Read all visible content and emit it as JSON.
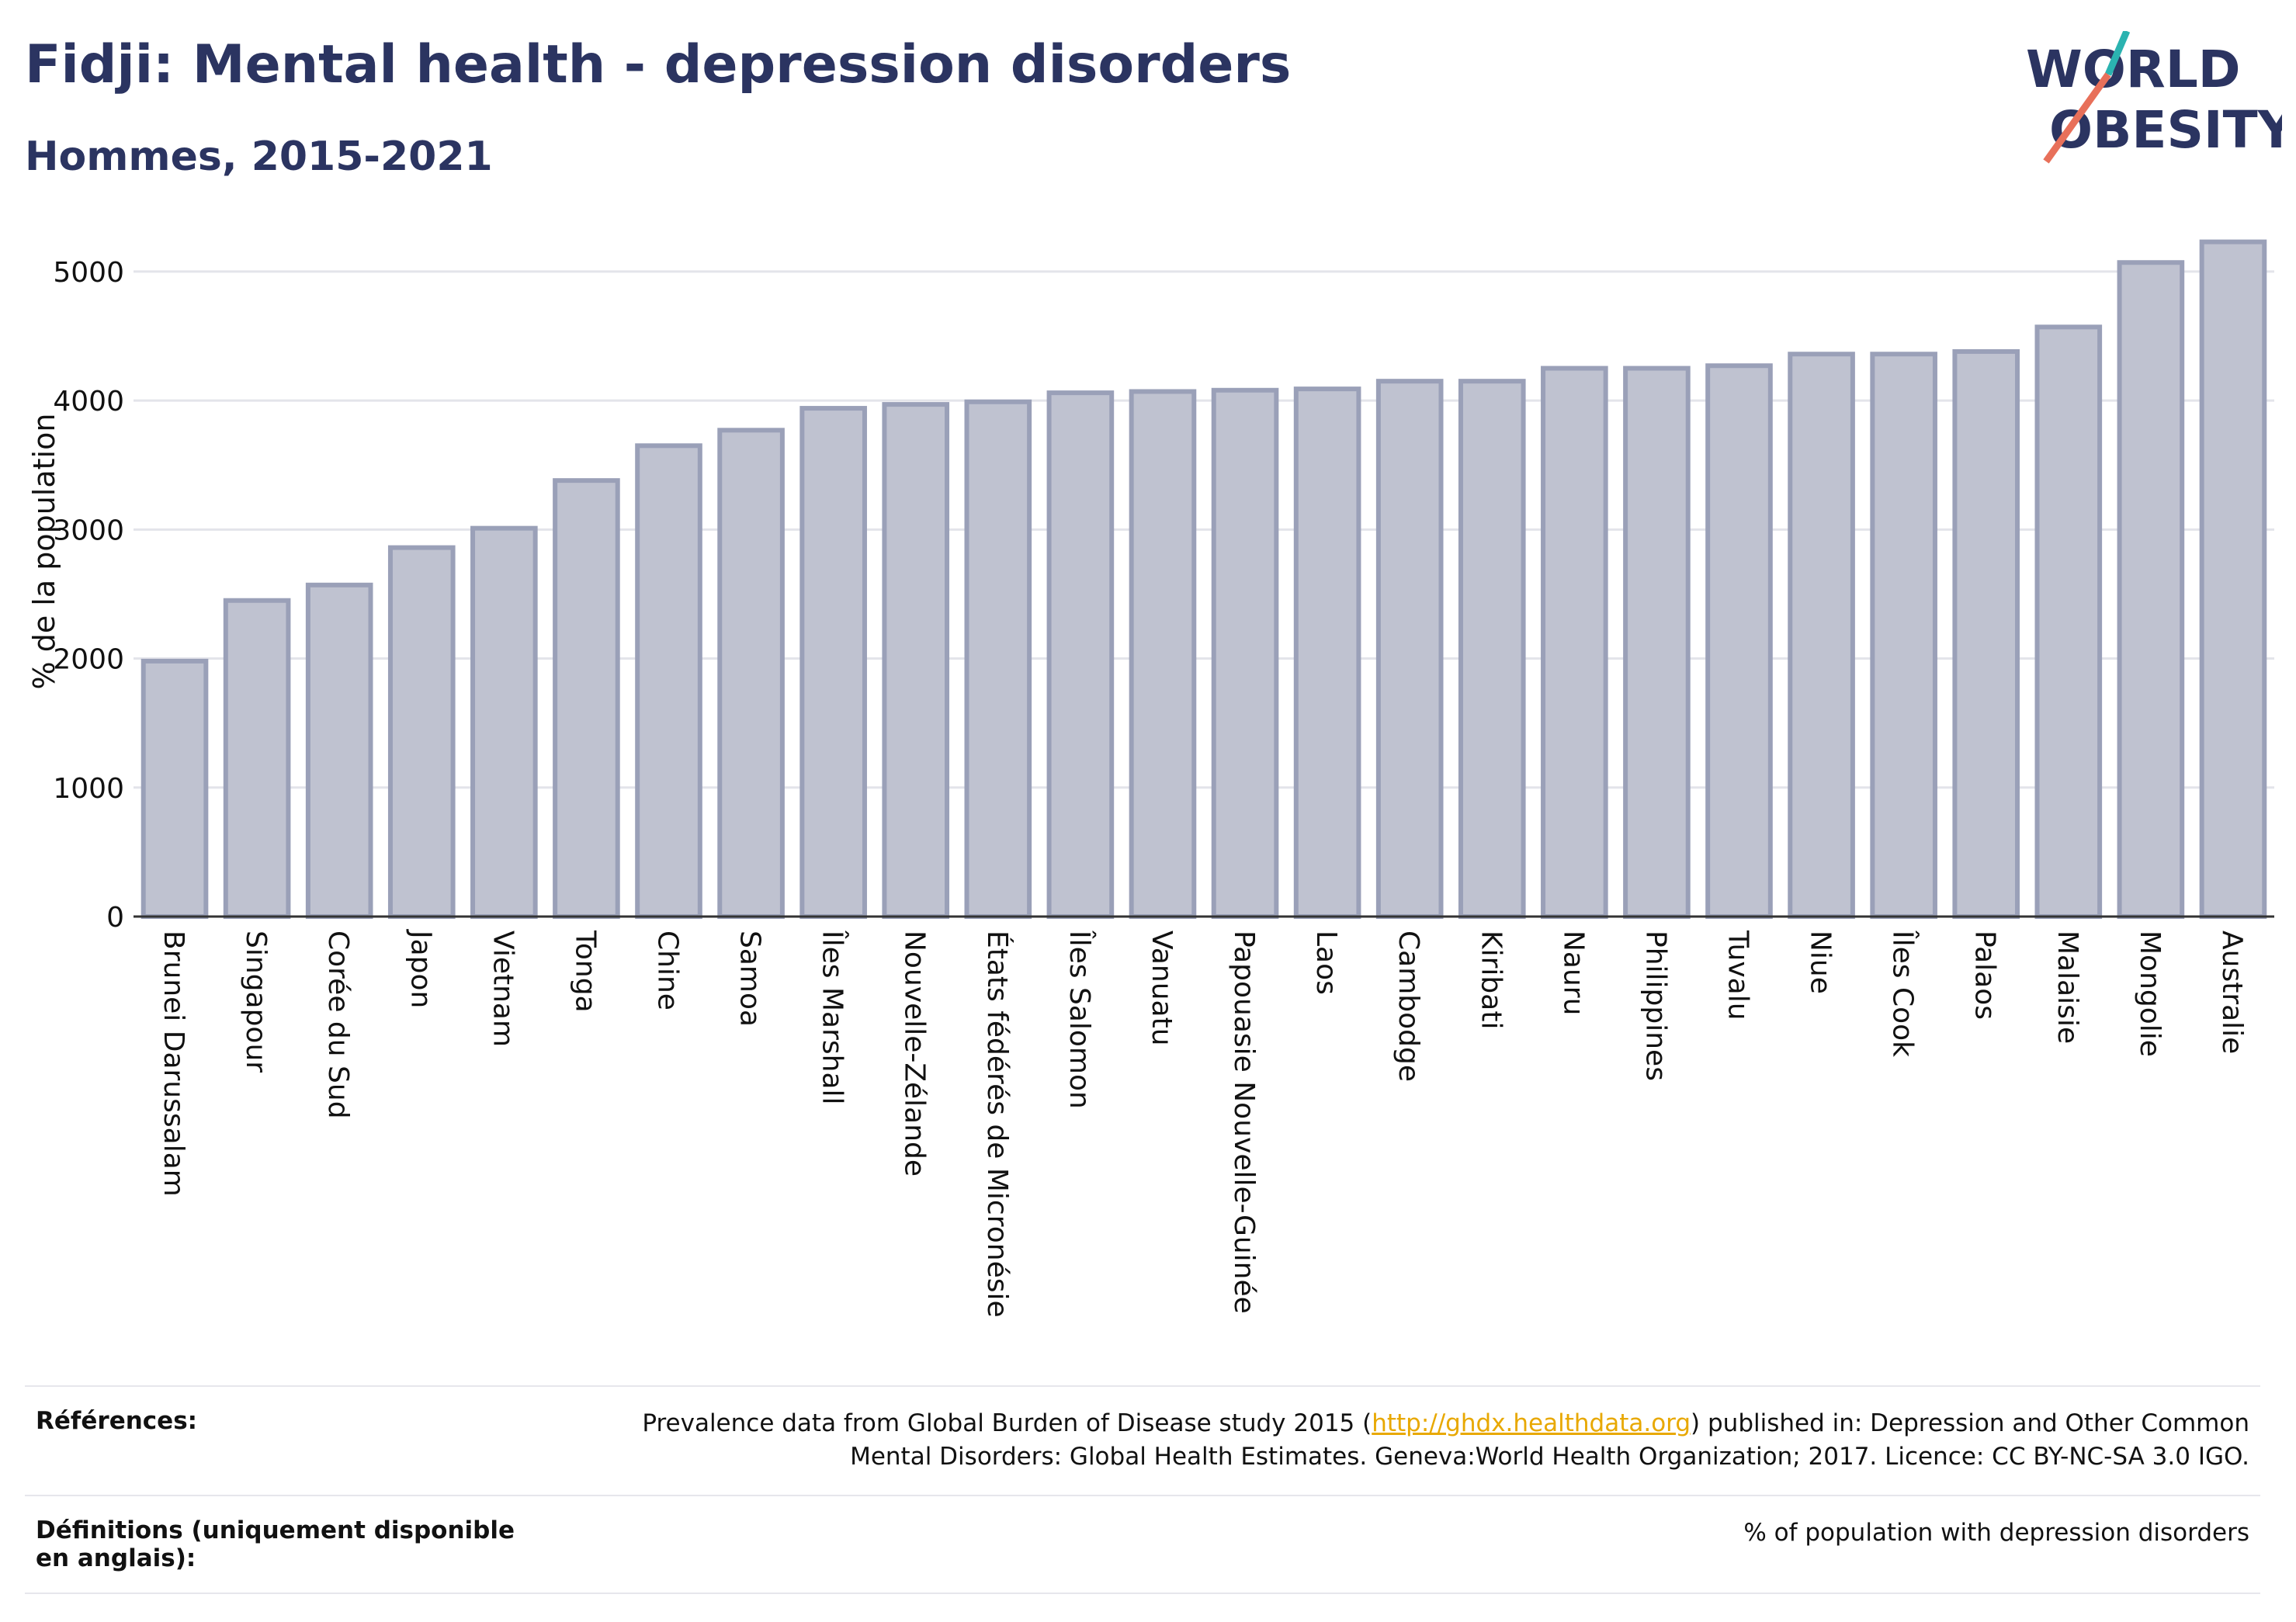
{
  "header": {
    "title": "Fidji: Mental health - depression disorders",
    "subtitle": "Hommes, 2015-2021"
  },
  "logo": {
    "line1": "WORLD",
    "line2": "OBESITY",
    "accent_teal": "#2bb3b0",
    "accent_coral": "#e8705a"
  },
  "chart_data": {
    "type": "bar",
    "ylabel": "% de la population",
    "ylim": [
      0,
      5300
    ],
    "yticks": [
      0,
      1000,
      2000,
      3000,
      4000,
      5000
    ],
    "grid": true,
    "bar_fill": "#bfc2d0",
    "bar_stroke": "#9aa0b8",
    "categories": [
      "Brunei Darussalam",
      "Singapour",
      "Corée du Sud",
      "Japon",
      "Vietnam",
      "Tonga",
      "Chine",
      "Samoa",
      "Îles Marshall",
      "Nouvelle-Zélande",
      "États fédérés de Micronésie",
      "Îles Salomon",
      "Vanuatu",
      "Papouasie Nouvelle-Guinée",
      "Laos",
      "Cambodge",
      "Kiribati",
      "Nauru",
      "Philippines",
      "Tuvalu",
      "Niue",
      "Îles Cook",
      "Palaos",
      "Malaisie",
      "Mongolie",
      "Australie"
    ],
    "values": [
      1980,
      2450,
      2570,
      2860,
      3010,
      3380,
      3650,
      3770,
      3940,
      3970,
      3990,
      4060,
      4070,
      4080,
      4090,
      4150,
      4150,
      4250,
      4250,
      4270,
      4360,
      4360,
      4380,
      4570,
      5070,
      5230
    ]
  },
  "references": {
    "label": "Références:",
    "text_before": "Prevalence data from Global Burden of Disease study 2015 (",
    "link": "http://ghdx.healthdata.org",
    "text_after": ") published in: Depression and Other Common Mental Disorders: Global Health Estimates. Geneva:World Health Organization; 2017. Licence: CC BY-NC-SA 3.0 IGO."
  },
  "definitions": {
    "label": "Définitions (uniquement disponible en anglais):",
    "text": "% of population with depression disorders"
  }
}
